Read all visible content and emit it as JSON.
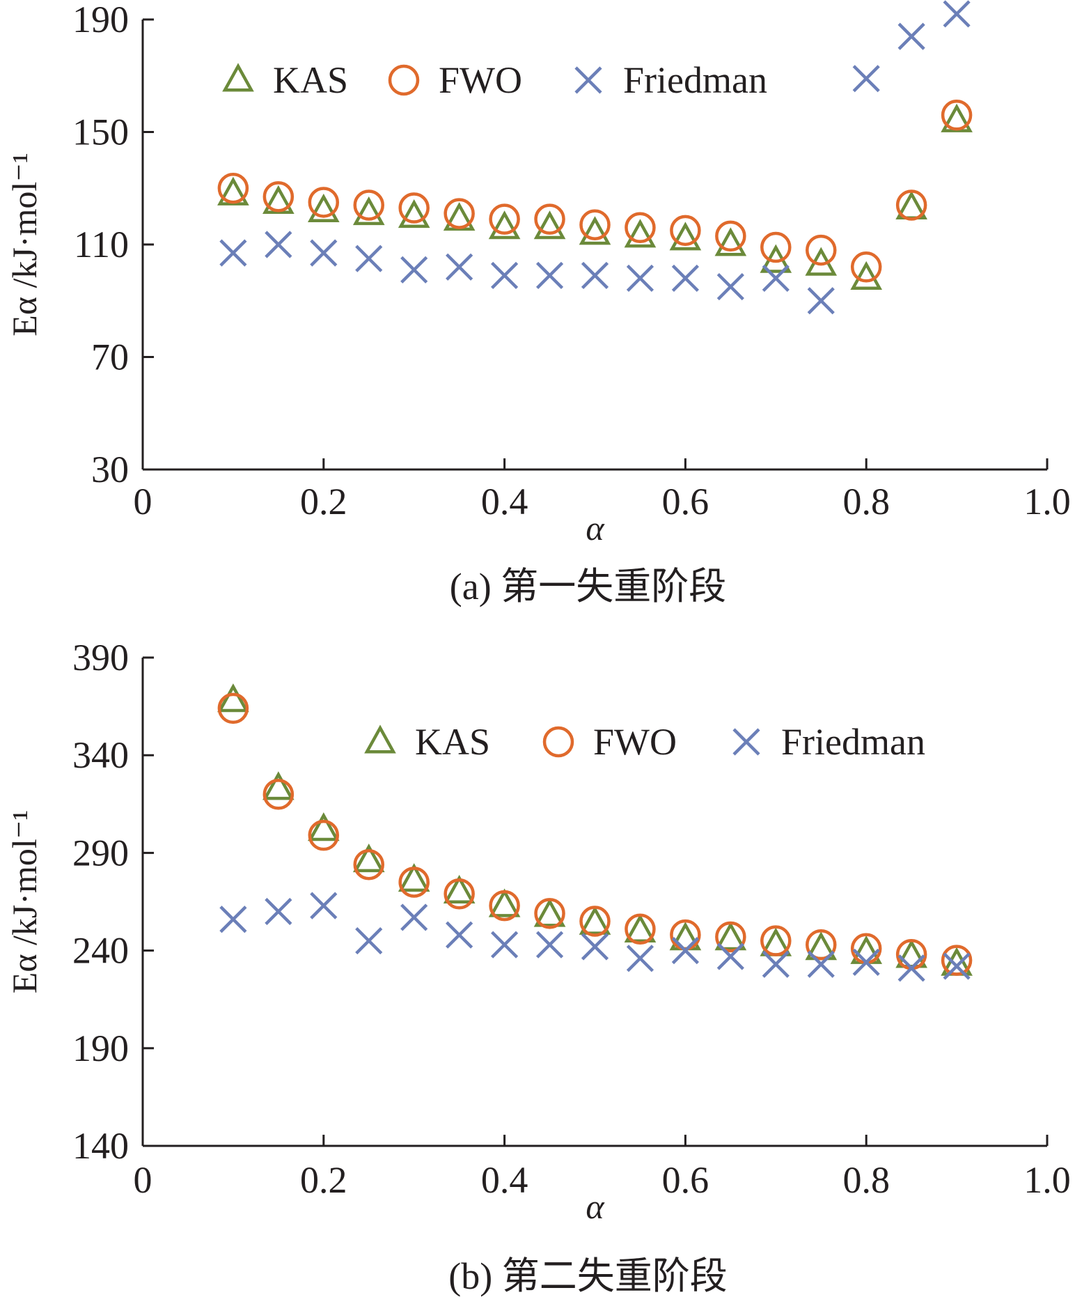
{
  "colors": {
    "KAS": "#6b8a3a",
    "FWO": "#e06a2c",
    "Friedman": "#6b7fb8",
    "axis": "#231f20"
  },
  "chart_data": [
    {
      "type": "scatter",
      "caption": "(a) 第一失重阶段",
      "xlabel": "α",
      "ylabel": "Eα /kJ·mol⁻¹",
      "xlim": [
        0,
        1.0
      ],
      "ylim": [
        30,
        190
      ],
      "xticks": [
        0,
        0.2,
        0.4,
        0.6,
        0.8,
        1.0
      ],
      "xtick_labels": [
        "0",
        "0.2",
        "0.4",
        "0.6",
        "0.8",
        "1.0"
      ],
      "yticks": [
        30,
        70,
        110,
        150,
        190
      ],
      "ytick_labels": [
        "30",
        "70",
        "110",
        "150",
        "190"
      ],
      "legend_position": "top",
      "x": [
        0.1,
        0.15,
        0.2,
        0.25,
        0.3,
        0.35,
        0.4,
        0.45,
        0.5,
        0.55,
        0.6,
        0.65,
        0.7,
        0.75,
        0.8,
        0.85,
        0.9
      ],
      "series": [
        {
          "name": "KAS",
          "marker": "triangle",
          "values": [
            128,
            125,
            122,
            121,
            120,
            119,
            116,
            116,
            114,
            113,
            112,
            110,
            104,
            103,
            98,
            123,
            154
          ]
        },
        {
          "name": "FWO",
          "marker": "circle",
          "values": [
            130,
            127,
            125,
            124,
            123,
            121,
            119,
            119,
            117,
            116,
            115,
            113,
            109,
            108,
            102,
            124,
            156
          ]
        },
        {
          "name": "Friedman",
          "marker": "cross",
          "values": [
            107,
            110,
            107,
            105,
            101,
            102,
            99,
            99,
            99,
            98,
            98,
            95,
            98,
            90,
            169,
            184,
            192
          ]
        }
      ]
    },
    {
      "type": "scatter",
      "caption": "(b) 第二失重阶段",
      "xlabel": "α",
      "ylabel": "Eα /kJ·mol⁻¹",
      "xlim": [
        0,
        1.0
      ],
      "ylim": [
        140,
        390
      ],
      "xticks": [
        0,
        0.2,
        0.4,
        0.6,
        0.8,
        1.0
      ],
      "xtick_labels": [
        "0",
        "0.2",
        "0.4",
        "0.6",
        "0.8",
        "1.0"
      ],
      "yticks": [
        140,
        190,
        240,
        290,
        340,
        390
      ],
      "ytick_labels": [
        "140",
        "190",
        "240",
        "290",
        "340",
        "390"
      ],
      "legend_position": "top-right",
      "x": [
        0.1,
        0.15,
        0.2,
        0.25,
        0.3,
        0.35,
        0.4,
        0.45,
        0.5,
        0.55,
        0.6,
        0.65,
        0.7,
        0.75,
        0.8,
        0.85,
        0.9
      ],
      "series": [
        {
          "name": "KAS",
          "marker": "triangle",
          "values": [
            368,
            323,
            302,
            286,
            276,
            270,
            263,
            258,
            254,
            250,
            246,
            246,
            243,
            241,
            239,
            237,
            233
          ]
        },
        {
          "name": "FWO",
          "marker": "circle",
          "values": [
            364,
            320,
            299,
            284,
            275,
            269,
            263,
            259,
            255,
            251,
            248,
            247,
            245,
            243,
            241,
            238,
            235
          ]
        },
        {
          "name": "Friedman",
          "marker": "cross",
          "values": [
            256,
            260,
            263,
            245,
            257,
            248,
            243,
            243,
            242,
            236,
            240,
            237,
            233,
            233,
            234,
            231,
            232
          ]
        }
      ]
    }
  ]
}
